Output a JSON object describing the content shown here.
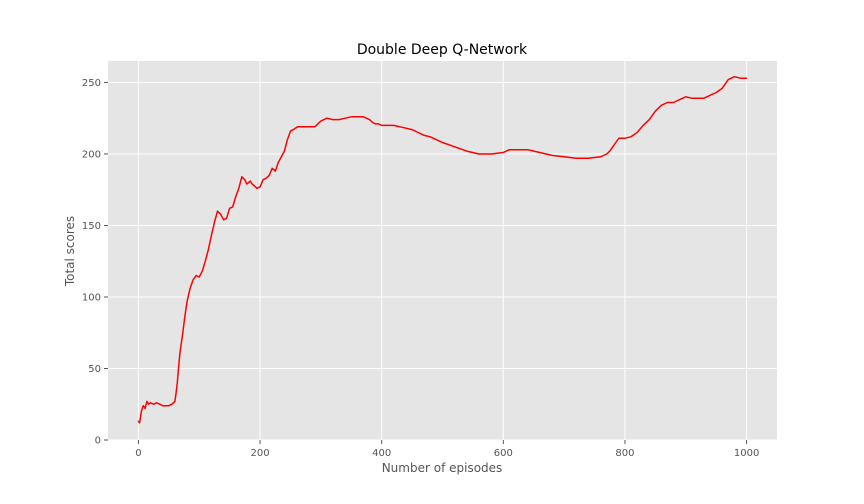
{
  "chart_data": {
    "type": "line",
    "title": "Double Deep Q-Network",
    "xlabel": "Number of episodes",
    "ylabel": "Total scores",
    "xlim": [
      -50,
      1050
    ],
    "ylim": [
      0,
      265
    ],
    "xticks": [
      0,
      200,
      400,
      600,
      800,
      1000
    ],
    "yticks": [
      0,
      50,
      100,
      150,
      200,
      250
    ],
    "grid": true,
    "colors": {
      "background": "#e5e5e5",
      "grid": "#ffffff",
      "line": "#ff0000",
      "tick_text": "#555555",
      "title_text": "#000000"
    },
    "series": [
      {
        "x": [
          0,
          2,
          5,
          8,
          11,
          14,
          17,
          20,
          25,
          30,
          35,
          40,
          45,
          50,
          55,
          60,
          62,
          64,
          66,
          68,
          70,
          73,
          76,
          80,
          85,
          90,
          95,
          100,
          105,
          110,
          115,
          120,
          125,
          130,
          135,
          140,
          145,
          150,
          155,
          160,
          165,
          170,
          175,
          178,
          181,
          184,
          187,
          190,
          195,
          200,
          205,
          210,
          215,
          220,
          225,
          230,
          235,
          240,
          245,
          250,
          255,
          258,
          262,
          270,
          280,
          290,
          300,
          305,
          310,
          320,
          330,
          340,
          350,
          360,
          370,
          380,
          385,
          390,
          395,
          400,
          410,
          420,
          430,
          440,
          450,
          460,
          470,
          480,
          490,
          500,
          520,
          540,
          560,
          580,
          600,
          610,
          620,
          630,
          640,
          660,
          680,
          700,
          720,
          730,
          740,
          760,
          770,
          775,
          780,
          785,
          790,
          800,
          810,
          820,
          830,
          840,
          850,
          860,
          870,
          880,
          890,
          900,
          910,
          920,
          930,
          940,
          950,
          960,
          970,
          980,
          990,
          1000
        ],
        "y": [
          13,
          12,
          20,
          24,
          22,
          27,
          25,
          26,
          25,
          26,
          25,
          24,
          24,
          24,
          25,
          27,
          33,
          40,
          50,
          60,
          66,
          75,
          85,
          97,
          106,
          112,
          115,
          114,
          118,
          125,
          133,
          143,
          152,
          160,
          158,
          154,
          155,
          162,
          163,
          170,
          176,
          184,
          182,
          179,
          180,
          181,
          179,
          178,
          176,
          177,
          182,
          183,
          185,
          190,
          188,
          194,
          198,
          202,
          210,
          216,
          217,
          218,
          219,
          219,
          219,
          219,
          223,
          224,
          225,
          224,
          224,
          225,
          226,
          226,
          226,
          224,
          222,
          221,
          221,
          220,
          220,
          220,
          219,
          218,
          217,
          215,
          213,
          212,
          210,
          208,
          205,
          202,
          200,
          200,
          201,
          203,
          203,
          203,
          203,
          201,
          199,
          198,
          197,
          197,
          197,
          198,
          200,
          202,
          205,
          208,
          211,
          211,
          212,
          215,
          220,
          224,
          230,
          234,
          236,
          236,
          238,
          240,
          239,
          239,
          239,
          241,
          243,
          246,
          252,
          254,
          253,
          253
        ]
      }
    ]
  }
}
